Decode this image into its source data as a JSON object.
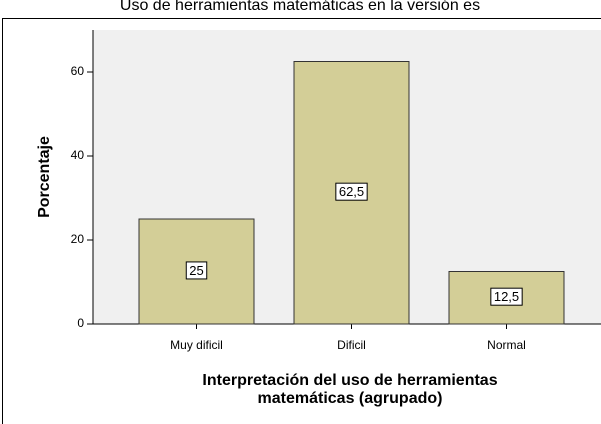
{
  "chart_data": {
    "type": "bar",
    "title": "Uso de herramientas matemáticas en la versión es",
    "categories": [
      "Muy dificil",
      "Dificil",
      "Normal"
    ],
    "values": [
      25,
      62.5,
      12.5
    ],
    "value_labels": [
      "25",
      "62,5",
      "12,5"
    ],
    "color": "#d3ce97",
    "ylabel": "Porcentaje",
    "xlabel": [
      "Interpretación del uso de herramientas",
      "matemáticas (agrupado)"
    ],
    "ylim": [
      0,
      70
    ],
    "yticks": [
      0,
      20,
      40,
      60
    ],
    "grid": false
  }
}
